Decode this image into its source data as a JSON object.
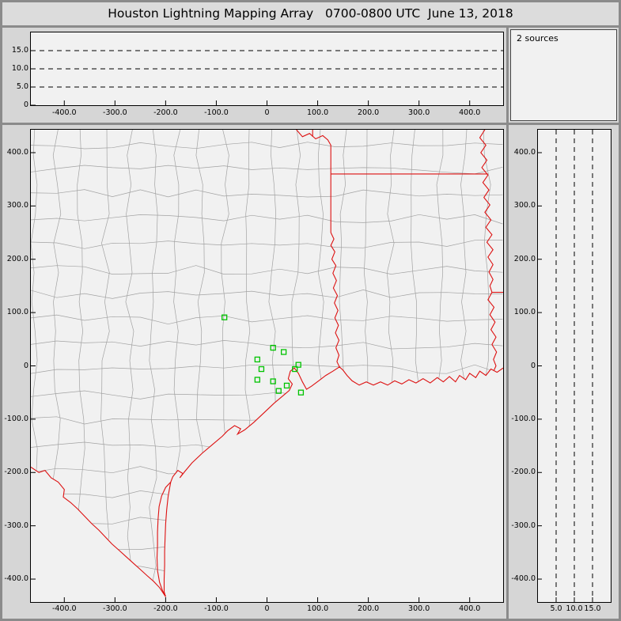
{
  "title": "Houston Lightning Mapping Array   0700-0800 UTC  June 13, 2018",
  "sources_label": "2 sources",
  "colors": {
    "window_bg": "#d6d6d6",
    "frame": "#8b8b8b",
    "plot_bg": "#f1f1f1",
    "plot_border": "#000000",
    "county_line": "#a2a2a2",
    "state_border": "#dd1111",
    "station": "#00c300",
    "dashed_grid": "#000000",
    "tick_text": "#000000"
  },
  "chart_data": [
    {
      "id": "alt-vs-ew",
      "type": "scatter",
      "title": "Altitude (km) vs East-West distance (km)",
      "xlim": [
        -466,
        466
      ],
      "ylim": [
        0,
        20
      ],
      "x_ticks": [
        {
          "v": -400,
          "t": "-400.0"
        },
        {
          "v": -300,
          "t": "-300.0"
        },
        {
          "v": -200,
          "t": "-200.0"
        },
        {
          "v": -100,
          "t": "-100.0"
        },
        {
          "v": 0,
          "t": "0"
        },
        {
          "v": 100,
          "t": "100.0"
        },
        {
          "v": 200,
          "t": "200.0"
        },
        {
          "v": 300,
          "t": "300.0"
        },
        {
          "v": 400,
          "t": "400.0"
        }
      ],
      "y_ticks": [
        {
          "v": 15,
          "t": "15.0"
        },
        {
          "v": 10,
          "t": "10.0"
        },
        {
          "v": 5,
          "t": "5.0"
        },
        {
          "v": 0,
          "t": "0"
        }
      ],
      "dashed_y_gridlines": [
        5,
        10,
        15
      ],
      "points": []
    },
    {
      "id": "plan-view",
      "type": "scatter",
      "title": "Plan view map: North-South vs East-West distance (km) with LMA station locations",
      "xlim": [
        -466,
        466
      ],
      "ylim": [
        -443,
        443
      ],
      "x_ticks": [
        {
          "v": -400,
          "t": "-400.0"
        },
        {
          "v": -300,
          "t": "-300.0"
        },
        {
          "v": -200,
          "t": "-200.0"
        },
        {
          "v": -100,
          "t": "-100.0"
        },
        {
          "v": 0,
          "t": "0"
        },
        {
          "v": 100,
          "t": "100.0"
        },
        {
          "v": 200,
          "t": "200.0"
        },
        {
          "v": 300,
          "t": "300.0"
        },
        {
          "v": 400,
          "t": "400.0"
        }
      ],
      "y_ticks": [
        {
          "v": 400,
          "t": "400.0"
        },
        {
          "v": 300,
          "t": "300.0"
        },
        {
          "v": 200,
          "t": "200.0"
        },
        {
          "v": 100,
          "t": "100.0"
        },
        {
          "v": 0,
          "t": "0"
        },
        {
          "v": -100,
          "t": "-100.0"
        },
        {
          "v": -200,
          "t": "-200.0"
        },
        {
          "v": -300,
          "t": "-300.0"
        },
        {
          "v": -400,
          "t": "-400.0"
        }
      ],
      "station_marker": "green-open-square",
      "stations": [
        [
          -84,
          91
        ],
        [
          12,
          34
        ],
        [
          33,
          26
        ],
        [
          -19,
          12
        ],
        [
          -11,
          -6
        ],
        [
          55,
          -6
        ],
        [
          62,
          2
        ],
        [
          -19,
          -26
        ],
        [
          12,
          -29
        ],
        [
          39,
          -37
        ],
        [
          23,
          -47
        ],
        [
          67,
          -50
        ]
      ]
    },
    {
      "id": "alt-vs-ns",
      "type": "scatter",
      "title": "Altitude (km) vs North-South distance (km)",
      "xlim": [
        0,
        20
      ],
      "ylim": [
        -443,
        443
      ],
      "x_ticks": [
        {
          "v": 5,
          "t": "5.0"
        },
        {
          "v": 10,
          "t": "10.0"
        },
        {
          "v": 15,
          "t": "15.0"
        }
      ],
      "y_ticks": [
        {
          "v": 400,
          "t": "400.0"
        },
        {
          "v": 300,
          "t": "300.0"
        },
        {
          "v": 200,
          "t": "200.0"
        },
        {
          "v": 100,
          "t": "100.0"
        },
        {
          "v": 0,
          "t": "0"
        },
        {
          "v": -100,
          "t": "-100.0"
        },
        {
          "v": -200,
          "t": "-200.0"
        },
        {
          "v": -300,
          "t": "-300.0"
        },
        {
          "v": -400,
          "t": "-400.0"
        }
      ],
      "dashed_x_gridlines": [
        5,
        10,
        15
      ],
      "points": []
    }
  ],
  "map_geometry": {
    "county_mesh": {
      "seed": 42,
      "col_spacing": 47,
      "row_spacing": 47,
      "step": 55,
      "jitter": 9
    },
    "red_lines": [
      {
        "name": "red-river-texas-oklahoma-border",
        "pts": [
          [
            58,
            443
          ],
          [
            70,
            430
          ],
          [
            84,
            436
          ],
          [
            96,
            426
          ],
          [
            110,
            432
          ],
          [
            120,
            424
          ],
          [
            126,
            414
          ],
          [
            126,
            250
          ]
        ]
      },
      {
        "name": "oklahoma-arkansas-border",
        "pts": [
          [
            90,
            443
          ],
          [
            90,
            430
          ]
        ]
      },
      {
        "name": "arkansas-louisiana-border",
        "pts": [
          [
            126,
            360
          ],
          [
            436,
            360
          ]
        ]
      },
      {
        "name": "sabine-river-texas-louisiana-border",
        "pts": [
          [
            126,
            250
          ],
          [
            132,
            238
          ],
          [
            126,
            226
          ],
          [
            134,
            214
          ],
          [
            128,
            200
          ],
          [
            136,
            188
          ],
          [
            130,
            174
          ],
          [
            137,
            160
          ],
          [
            131,
            146
          ],
          [
            139,
            132
          ],
          [
            133,
            118
          ],
          [
            140,
            104
          ],
          [
            134,
            90
          ],
          [
            141,
            76
          ],
          [
            135,
            62
          ],
          [
            142,
            48
          ],
          [
            136,
            34
          ],
          [
            142,
            20
          ],
          [
            138,
            8
          ],
          [
            143,
            -2
          ]
        ]
      },
      {
        "name": "mississippi-river-border",
        "pts": [
          [
            430,
            443
          ],
          [
            420,
            428
          ],
          [
            432,
            414
          ],
          [
            422,
            400
          ],
          [
            434,
            386
          ],
          [
            424,
            372
          ],
          [
            436,
            358
          ],
          [
            426,
            344
          ],
          [
            438,
            330
          ],
          [
            428,
            316
          ],
          [
            440,
            302
          ],
          [
            430,
            288
          ],
          [
            442,
            274
          ],
          [
            432,
            260
          ],
          [
            444,
            246
          ],
          [
            434,
            232
          ],
          [
            446,
            218
          ],
          [
            436,
            204
          ],
          [
            446,
            190
          ],
          [
            438,
            176
          ],
          [
            446,
            162
          ],
          [
            440,
            150
          ],
          [
            444,
            138
          ]
        ]
      },
      {
        "name": "louisiana-mississippi-31n-border",
        "pts": [
          [
            444,
            138
          ],
          [
            466,
            138
          ]
        ]
      },
      {
        "name": "mississippi-river-lower",
        "pts": [
          [
            444,
            138
          ],
          [
            436,
            124
          ],
          [
            448,
            110
          ],
          [
            440,
            96
          ],
          [
            450,
            82
          ],
          [
            442,
            68
          ],
          [
            452,
            54
          ],
          [
            444,
            40
          ],
          [
            453,
            26
          ],
          [
            447,
            12
          ],
          [
            452,
            0
          ],
          [
            448,
            -8
          ]
        ]
      },
      {
        "name": "gulf-coastline",
        "pts": [
          [
            466,
            -4
          ],
          [
            454,
            -12
          ],
          [
            442,
            -6
          ],
          [
            432,
            -18
          ],
          [
            420,
            -10
          ],
          [
            412,
            -22
          ],
          [
            400,
            -14
          ],
          [
            392,
            -26
          ],
          [
            380,
            -18
          ],
          [
            372,
            -30
          ],
          [
            360,
            -20
          ],
          [
            348,
            -30
          ],
          [
            336,
            -22
          ],
          [
            322,
            -32
          ],
          [
            308,
            -24
          ],
          [
            294,
            -32
          ],
          [
            280,
            -26
          ],
          [
            266,
            -34
          ],
          [
            252,
            -28
          ],
          [
            238,
            -36
          ],
          [
            224,
            -30
          ],
          [
            210,
            -36
          ],
          [
            196,
            -30
          ],
          [
            182,
            -36
          ],
          [
            168,
            -28
          ],
          [
            158,
            -18
          ],
          [
            150,
            -8
          ],
          [
            143,
            -2
          ],
          [
            130,
            -10
          ],
          [
            116,
            -18
          ],
          [
            102,
            -28
          ],
          [
            88,
            -38
          ],
          [
            78,
            -44
          ],
          [
            70,
            -30
          ],
          [
            62,
            -14
          ],
          [
            54,
            -4
          ],
          [
            46,
            -10
          ],
          [
            42,
            -24
          ],
          [
            50,
            -34
          ],
          [
            44,
            -46
          ],
          [
            34,
            -54
          ],
          [
            14,
            -70
          ],
          [
            -6,
            -88
          ],
          [
            -26,
            -106
          ],
          [
            -44,
            -120
          ],
          [
            -58,
            -128
          ],
          [
            -52,
            -118
          ],
          [
            -64,
            -112
          ],
          [
            -78,
            -122
          ],
          [
            -88,
            -132
          ],
          [
            -108,
            -148
          ],
          [
            -128,
            -164
          ],
          [
            -148,
            -182
          ],
          [
            -162,
            -198
          ],
          [
            -172,
            -210
          ],
          [
            -166,
            -202
          ],
          [
            -176,
            -196
          ],
          [
            -186,
            -208
          ],
          [
            -190,
            -218
          ],
          [
            -195,
            -244
          ],
          [
            -198,
            -270
          ],
          [
            -200,
            -296
          ],
          [
            -201,
            -322
          ],
          [
            -202,
            -348
          ],
          [
            -202,
            -374
          ],
          [
            -203,
            -400
          ],
          [
            -203,
            -424
          ],
          [
            -200,
            -433
          ]
        ]
      },
      {
        "name": "laguna-madre-shore",
        "pts": [
          [
            -190,
            -218
          ],
          [
            -200,
            -228
          ],
          [
            -208,
            -244
          ],
          [
            -213,
            -264
          ],
          [
            -215,
            -288
          ],
          [
            -216,
            -312
          ],
          [
            -216,
            -336
          ],
          [
            -217,
            -360
          ],
          [
            -216,
            -384
          ],
          [
            -212,
            -406
          ],
          [
            -206,
            -422
          ],
          [
            -200,
            -433
          ]
        ]
      },
      {
        "name": "rio-grande-border",
        "pts": [
          [
            -466,
            -190
          ],
          [
            -450,
            -200
          ],
          [
            -438,
            -196
          ],
          [
            -426,
            -210
          ],
          [
            -412,
            -218
          ],
          [
            -400,
            -232
          ],
          [
            -402,
            -246
          ],
          [
            -388,
            -256
          ],
          [
            -374,
            -268
          ],
          [
            -360,
            -282
          ],
          [
            -346,
            -296
          ],
          [
            -332,
            -308
          ],
          [
            -318,
            -322
          ],
          [
            -306,
            -334
          ],
          [
            -292,
            -346
          ],
          [
            -278,
            -358
          ],
          [
            -264,
            -370
          ],
          [
            -250,
            -382
          ],
          [
            -236,
            -394
          ],
          [
            -224,
            -404
          ],
          [
            -212,
            -416
          ],
          [
            -200,
            -433
          ]
        ]
      }
    ]
  }
}
